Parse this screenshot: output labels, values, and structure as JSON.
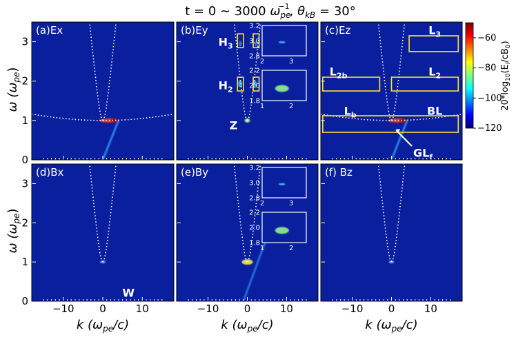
{
  "chart_data": {
    "type": "heatmap",
    "title": "t = 0 ~ 3000 ωpe⁻¹, θkB = 30°",
    "title_parts": [
      "t = 0 ~ 3000 ",
      "ω",
      "pe",
      "−1",
      ", ",
      "θ",
      "kB",
      " = 30°"
    ],
    "xlabel": "k (ωpe/c)",
    "xlabel_parts": [
      "k (",
      "ω",
      "pe",
      "/c)"
    ],
    "ylabel": "ω (ωpe)",
    "ylabel_parts": [
      "ω (",
      "ω",
      "pe",
      ")"
    ],
    "xlim": [
      -18,
      18
    ],
    "ylim": [
      0,
      3.5
    ],
    "xticks": [
      -10,
      0,
      10
    ],
    "xtick_labels": [
      "−10",
      "0",
      "10"
    ],
    "yticks": [
      0,
      1,
      2,
      3
    ],
    "ytick_labels": [
      "0",
      "1",
      "2",
      "3"
    ],
    "colorbar": {
      "label": "20*log10(Ei/cB0)",
      "label_parts": [
        "20*log",
        "10",
        "(E",
        "i",
        "/cB",
        "0",
        ")"
      ],
      "range": [
        -120,
        -50
      ],
      "ticks": [
        -60,
        -80,
        -100,
        -120
      ],
      "tick_labels": [
        "−60",
        "−80",
        "−100",
        "−120"
      ]
    },
    "panels": [
      {
        "label": "(a)Ex",
        "annotations": []
      },
      {
        "label": "(b)Ey",
        "annotations": [
          {
            "text": "H",
            "sub": "3",
            "k": -5.5,
            "w": 3.0
          },
          {
            "text": "H",
            "sub": "2",
            "k": -5.5,
            "w": 1.9
          },
          {
            "text": "Z",
            "k": -3.5,
            "w": 0.88
          }
        ],
        "boxes": [
          {
            "k": [
              -2.5,
              -1.0
            ],
            "w": [
              2.85,
              3.2
            ]
          },
          {
            "k": [
              1.5,
              3.0
            ],
            "w": [
              2.85,
              3.2
            ]
          },
          {
            "k": [
              -2.5,
              -1.0
            ],
            "w": [
              1.75,
              2.1
            ]
          },
          {
            "k": [
              1.5,
              3.0
            ],
            "w": [
              1.75,
              2.1
            ]
          }
        ],
        "insets": [
          {
            "xlim": [
              2,
              3.5
            ],
            "ylim": [
              2.8,
              3.2
            ],
            "xticks": [
              "2",
              "3"
            ],
            "yticks": [
              "2.8",
              "3.0",
              "3.2"
            ]
          },
          {
            "xlim": [
              1,
              2.5
            ],
            "ylim": [
              1.8,
              2.2
            ],
            "xticks": [
              "1",
              "2"
            ],
            "yticks": [
              "1.8",
              "2.0",
              "2.2"
            ]
          }
        ]
      },
      {
        "label": "(c)Ez",
        "annotations": [
          {
            "text": "L",
            "sub": "3",
            "k": 11,
            "w": 3.3
          },
          {
            "text": "L",
            "sub": "2b",
            "k": -13.5,
            "w": 2.25
          },
          {
            "text": "L",
            "sub": "2",
            "k": 11,
            "w": 2.25
          },
          {
            "text": "L",
            "sub": "b",
            "k": -10.5,
            "w": 1.25
          },
          {
            "text": "BL",
            "k": 11,
            "w": 1.25
          },
          {
            "text": "GL",
            "sub": "f",
            "k": 8,
            "w": 0.18
          }
        ],
        "boxes": [
          {
            "k": [
              4.5,
              17
            ],
            "w": [
              2.75,
              3.15
            ]
          },
          {
            "k": [
              -17.5,
              -3
            ],
            "w": [
              1.75,
              2.1
            ]
          },
          {
            "k": [
              0,
              17
            ],
            "w": [
              1.75,
              2.1
            ]
          },
          {
            "k": [
              -17.5,
              17
            ],
            "w": [
              0.7,
              1.12
            ]
          }
        ]
      },
      {
        "label": "(d)Bx",
        "annotations": [
          {
            "text": "W",
            "k": 6.5,
            "w": 0.22
          }
        ]
      },
      {
        "label": "(e)By",
        "annotations": [],
        "insets": [
          {
            "xlim": [
              2,
              3.5
            ],
            "ylim": [
              2.8,
              3.2
            ],
            "xticks": [
              "2",
              "3"
            ],
            "yticks": [
              "2.8",
              "3.0",
              "3.2"
            ]
          },
          {
            "xlim": [
              1,
              2.5
            ],
            "ylim": [
              1.8,
              2.2
            ],
            "xticks": [
              "1",
              "2"
            ],
            "yticks": [
              "1.8",
              "2.0",
              "2.2"
            ]
          }
        ]
      },
      {
        "label": "(f) Bz",
        "annotations": []
      }
    ],
    "colors": {
      "background": "#0a1f9e",
      "box": "#ffe033",
      "dotted": "#ffffff"
    }
  }
}
